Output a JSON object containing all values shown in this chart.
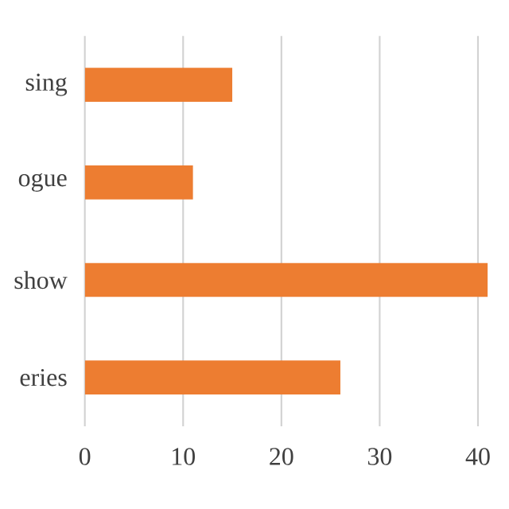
{
  "chart_data": {
    "type": "bar",
    "orientation": "horizontal",
    "categories": [
      "sing",
      "ogue",
      "show",
      "eries"
    ],
    "values": [
      15,
      11,
      41,
      26
    ],
    "color": "#ed7d31",
    "xlim": [
      0,
      41
    ],
    "xticks": [
      0,
      10,
      20,
      30,
      40
    ],
    "grid": "x"
  }
}
